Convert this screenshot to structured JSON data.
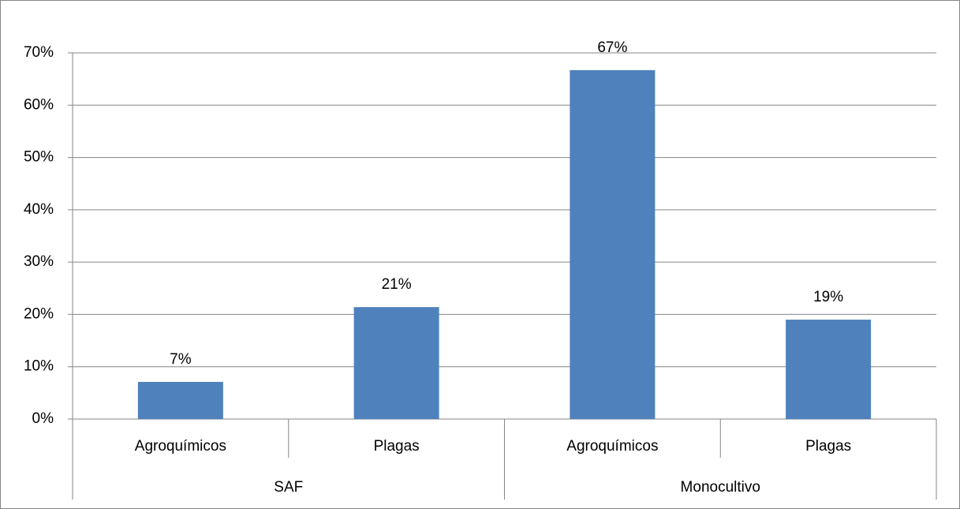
{
  "chart_data": {
    "type": "bar",
    "categories": [
      "Agroquímicos",
      "Plagas",
      "Agroquímicos",
      "Plagas"
    ],
    "groups": [
      "SAF",
      "Monocultivo"
    ],
    "values": [
      7.1,
      21.4,
      66.7,
      19.0
    ],
    "value_labels": [
      "7%",
      "21%",
      "67%",
      "19%"
    ],
    "color": "#4f81bd",
    "ylim": [
      0,
      70
    ],
    "yticks": [
      {
        "value": 0,
        "label": "0%"
      },
      {
        "value": 10,
        "label": "10%"
      },
      {
        "value": 20,
        "label": "20%"
      },
      {
        "value": 30,
        "label": "30%"
      },
      {
        "value": 40,
        "label": "40%"
      },
      {
        "value": 50,
        "label": "50%"
      },
      {
        "value": 60,
        "label": "60%"
      },
      {
        "value": 70,
        "label": "70%"
      }
    ],
    "grid": true
  }
}
